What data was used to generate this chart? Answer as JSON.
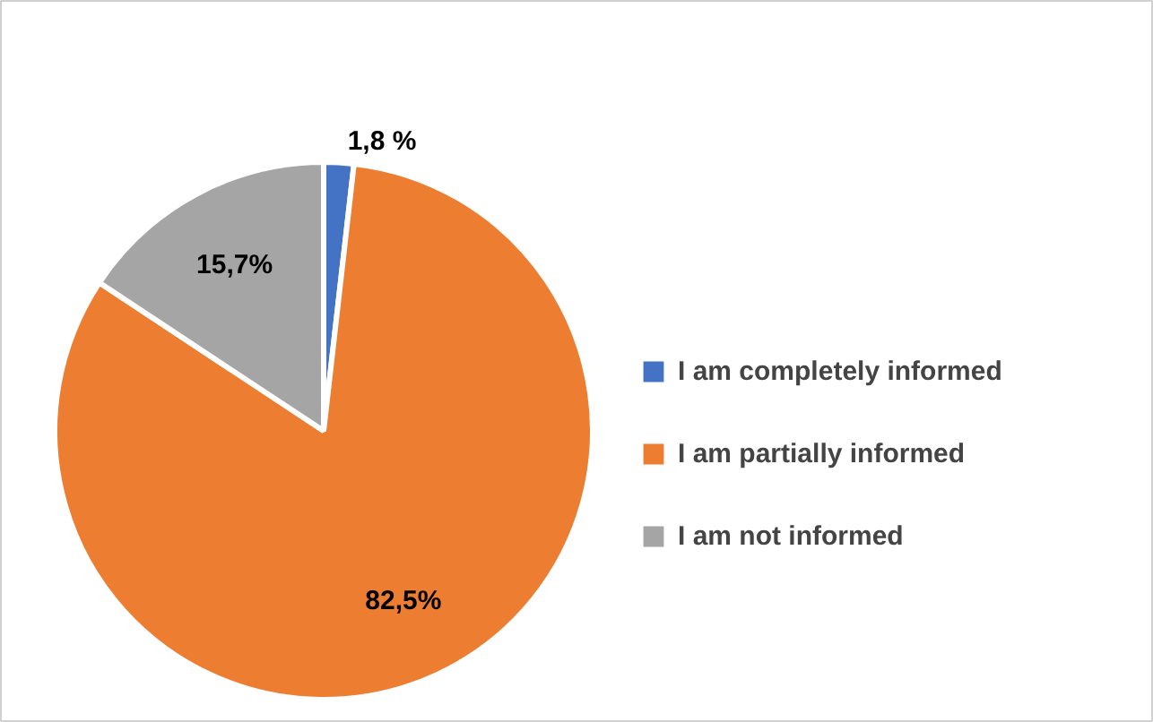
{
  "chart_data": {
    "type": "pie",
    "categories": [
      "I am completely informed",
      "I am partially informed",
      "I am not informed"
    ],
    "values": [
      1.8,
      82.5,
      15.7
    ],
    "colors": [
      "#4472c4",
      "#ed7d31",
      "#a5a5a5"
    ],
    "value_labels": [
      "1,8 %",
      "82,5%",
      "15,7%"
    ],
    "legend": "right"
  }
}
